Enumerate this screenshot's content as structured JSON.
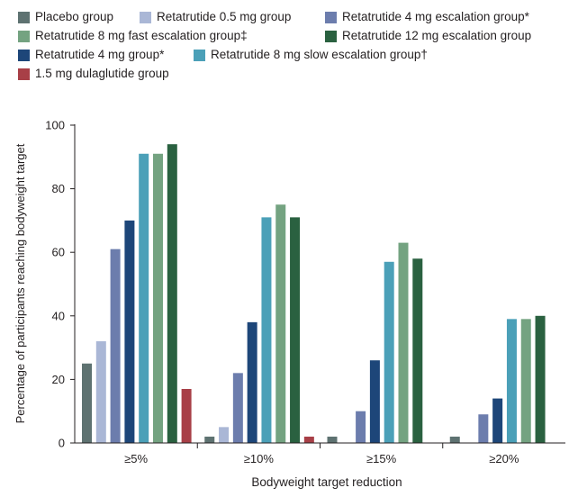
{
  "chart_data": {
    "type": "bar",
    "title": "",
    "xlabel": "Bodyweight target reduction",
    "ylabel": "Percentage of participants reaching bodyweight target",
    "ylim": [
      0,
      100
    ],
    "yticks": [
      "0",
      "20",
      "40",
      "60",
      "80",
      "100"
    ],
    "grid": false,
    "legend_position": "top",
    "categories": [
      "≥5%",
      "≥10%",
      "≥15%",
      "≥20%"
    ],
    "series": [
      {
        "name": "Placebo group",
        "color": "#5e7271",
        "values": [
          25,
          2,
          2,
          2
        ]
      },
      {
        "name": "Retatrutide 0.5 mg group",
        "color": "#aab7d6",
        "values": [
          32,
          5,
          null,
          null
        ]
      },
      {
        "name": "Retatrutide 4 mg escalation group*",
        "color": "#6c7dad",
        "values": [
          61,
          22,
          10,
          9
        ]
      },
      {
        "name": "Retatrutide 4 mg group*",
        "color": "#1d4679",
        "values": [
          70,
          38,
          26,
          14
        ]
      },
      {
        "name": "Retatrutide 8 mg slow escalation group†",
        "color": "#4ba0b8",
        "values": [
          91,
          71,
          57,
          39
        ]
      },
      {
        "name": "Retatrutide 8 mg fast escalation group‡",
        "color": "#74a381",
        "values": [
          91,
          75,
          63,
          39
        ]
      },
      {
        "name": "Retatrutide 12 mg escalation group",
        "color": "#2a6140",
        "values": [
          94,
          71,
          58,
          40
        ]
      },
      {
        "name": "1.5 mg dulaglutide group",
        "color": "#a83f47",
        "values": [
          17,
          2,
          null,
          null
        ]
      }
    ]
  }
}
